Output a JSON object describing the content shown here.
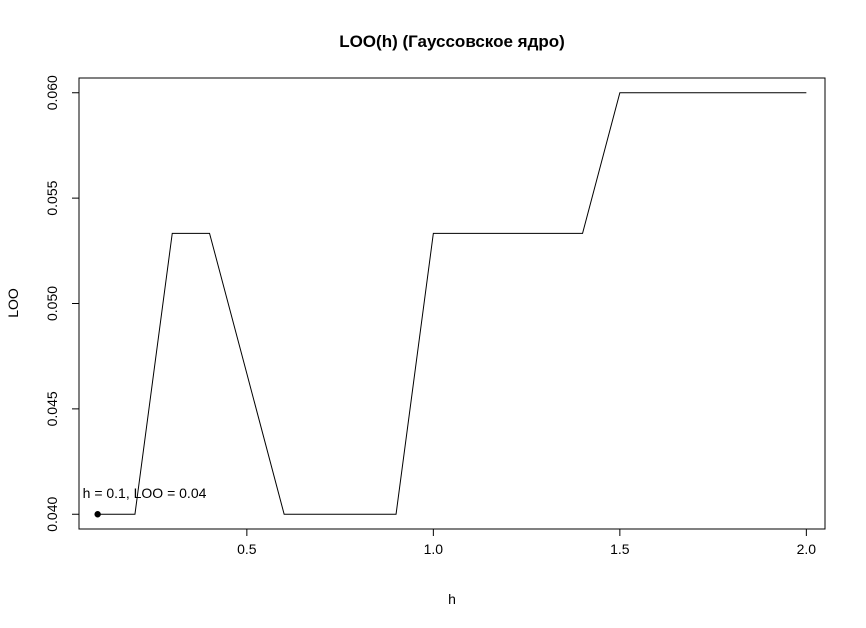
{
  "chart_data": {
    "type": "line",
    "title": "LOO(h) (Гауссовское ядро)",
    "xlabel": "h",
    "ylabel": "LOO",
    "xlim": [
      0.05,
      2.05
    ],
    "ylim": [
      0.0393,
      0.0607
    ],
    "x_ticks": [
      "0.5",
      "1.0",
      "1.5",
      "2.0"
    ],
    "y_ticks": [
      "0.040",
      "0.045",
      "0.050",
      "0.055",
      "0.060"
    ],
    "x_tick_values": [
      0.5,
      1.0,
      1.5,
      2.0
    ],
    "y_tick_values": [
      0.04,
      0.045,
      0.05,
      0.055,
      0.06
    ],
    "series": [
      {
        "x": [
          0.1,
          0.2,
          0.3,
          0.4,
          0.5,
          0.6,
          0.7,
          0.8,
          0.9,
          1.0,
          1.1,
          1.2,
          1.3,
          1.4,
          1.5,
          1.6,
          1.7,
          1.8,
          1.9,
          2.0
        ],
        "y": [
          0.04,
          0.04,
          0.05333,
          0.05333,
          0.04667,
          0.04,
          0.04,
          0.04,
          0.04,
          0.05333,
          0.05333,
          0.05333,
          0.05333,
          0.05333,
          0.06,
          0.06,
          0.06,
          0.06,
          0.06,
          0.06
        ],
        "color": "#000000"
      }
    ],
    "highlight_point": {
      "x": 0.1,
      "y": 0.04
    },
    "annotation": "h = 0.1, LOO = 0.04",
    "grid": false,
    "legend": "none"
  }
}
